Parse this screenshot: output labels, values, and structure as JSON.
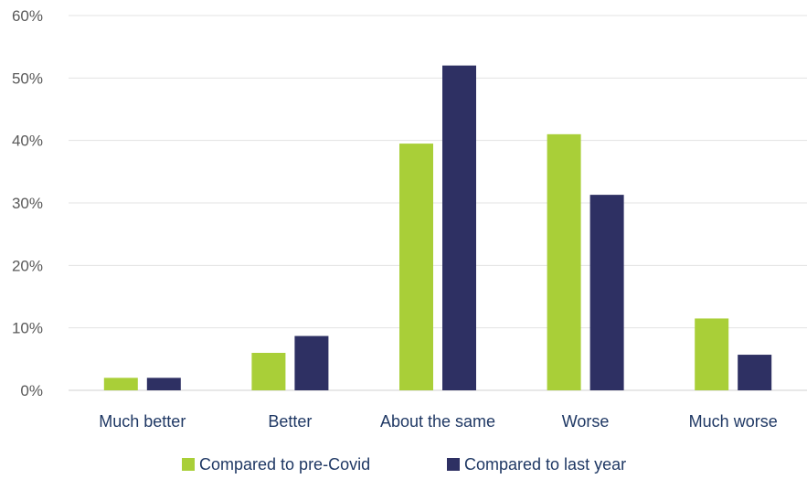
{
  "chart_data": {
    "type": "bar",
    "categories": [
      "Much better",
      "Better",
      "About the same",
      "Worse",
      "Much worse"
    ],
    "series": [
      {
        "name": "Compared to pre-Covid",
        "color": "#a9cf38",
        "values": [
          2,
          6,
          39.5,
          41,
          11.5
        ]
      },
      {
        "name": "Compared to last year",
        "color": "#2e3063",
        "values": [
          2,
          8.7,
          52,
          31.3,
          5.7
        ]
      }
    ],
    "y_ticks": [
      "0%",
      "10%",
      "20%",
      "30%",
      "40%",
      "50%",
      "60%"
    ],
    "ylim": [
      0,
      60
    ],
    "grid": true,
    "legend_position": "bottom"
  }
}
